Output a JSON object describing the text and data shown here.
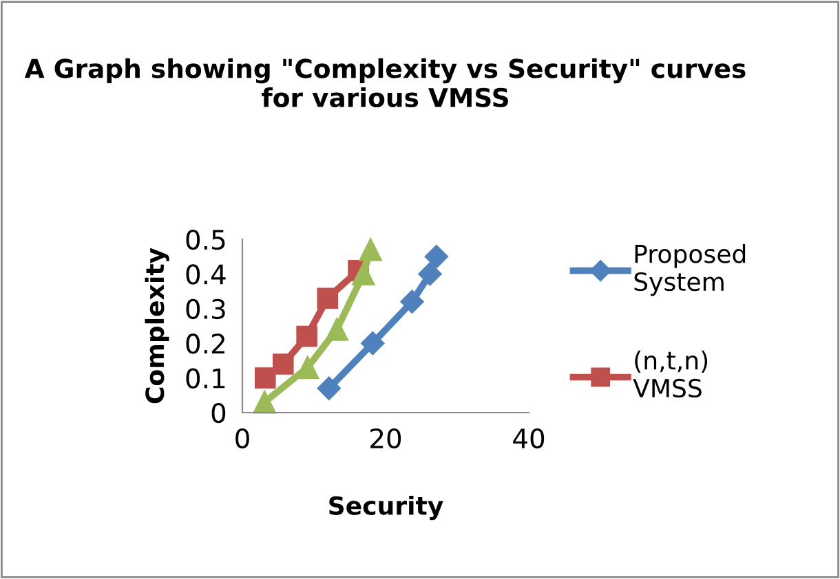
{
  "chart_data": {
    "type": "line",
    "title": "A Graph showing \"Complexity vs Security\" curves for various VMSS",
    "xlabel": "Security",
    "ylabel": "Complexity",
    "series": [
      {
        "name": "Proposed System",
        "color": "#4f81bd",
        "marker": "diamond",
        "x": [
          12.1,
          18.2,
          23.7,
          26.2,
          27.1
        ],
        "values": [
          0.07,
          0.2,
          0.32,
          0.4,
          0.45
        ]
      },
      {
        "name": "(n,t,n) VMSS",
        "color": "#c0504d",
        "marker": "square",
        "x": [
          3.2,
          5.7,
          9.0,
          11.9,
          16.2
        ],
        "values": [
          0.1,
          0.14,
          0.22,
          0.33,
          0.41
        ]
      },
      {
        "color": "#9bbb59",
        "marker": "triangle",
        "x": [
          3.1,
          9.1,
          13.2,
          16.9,
          17.9
        ],
        "values": [
          0.03,
          0.13,
          0.24,
          0.4,
          0.47
        ]
      }
    ],
    "xlim": [
      0,
      40
    ],
    "xticks": [
      0,
      20,
      40
    ],
    "ylim": [
      0,
      0.5
    ],
    "yticks": [
      0,
      0.1,
      0.2,
      0.3,
      0.4,
      0.5
    ],
    "grid": false,
    "legend": "right"
  }
}
